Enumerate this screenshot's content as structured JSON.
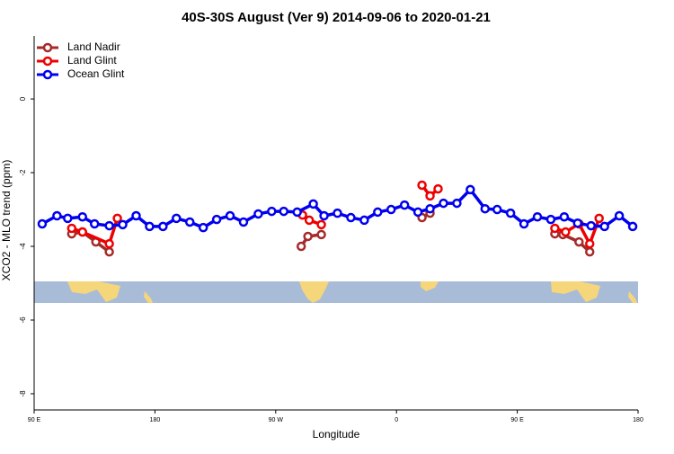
{
  "chart_data": {
    "type": "line",
    "title": "40S-30S August (Ver 9)   2014-09-06 to 2020-01-21",
    "xlabel": "Longitude",
    "ylabel": "XCO2 - MLO trend (ppm)",
    "xlim": [
      90,
      540
    ],
    "ylim": [
      -8.44,
      1.71
    ],
    "xticks": [
      {
        "value": 90,
        "label": "90 E"
      },
      {
        "value": 180,
        "label": "180"
      },
      {
        "value": 270,
        "label": "90 W"
      },
      {
        "value": 360,
        "label": "0"
      },
      {
        "value": 450,
        "label": "90 E"
      },
      {
        "value": 540,
        "label": "180"
      }
    ],
    "yticks": [
      0,
      -2,
      -4,
      -6,
      -8
    ],
    "legend": "top-left",
    "series": [
      {
        "name": "Land Nadir",
        "color": "#a52a2a",
        "x": [
          118,
          126,
          136,
          146,
          null,
          289,
          294,
          304,
          null,
          379,
          385,
          null,
          478,
          484,
          496,
          504
        ],
        "values": [
          -3.66,
          -3.61,
          -3.88,
          -4.15,
          null,
          -4.0,
          -3.73,
          -3.68,
          null,
          -3.22,
          -3.1,
          null,
          -3.66,
          -3.68,
          -3.88,
          -4.15
        ]
      },
      {
        "name": "Land Glint",
        "color": "#ee0000",
        "x": [
          118,
          126,
          146,
          152,
          null,
          290,
          295,
          304,
          null,
          379,
          385,
          391,
          null,
          478,
          486,
          496,
          504,
          511
        ],
        "values": [
          -3.51,
          -3.61,
          -3.93,
          -3.24,
          null,
          -3.15,
          -3.29,
          -3.41,
          null,
          -2.34,
          -2.63,
          -2.44,
          null,
          -3.51,
          -3.61,
          -3.39,
          -3.93,
          -3.24
        ]
      },
      {
        "name": "Ocean Glint",
        "color": "#0000ee",
        "x": [
          96,
          107,
          115,
          126,
          135,
          146,
          156,
          166,
          176,
          186,
          196,
          206,
          216,
          226,
          236,
          246,
          257,
          267,
          276,
          286,
          298,
          306,
          316,
          326,
          336,
          346,
          356,
          366,
          376,
          385,
          395,
          405,
          415,
          426,
          435,
          445,
          455,
          465,
          475,
          485,
          495,
          505,
          515,
          526,
          536
        ],
        "values": [
          -3.39,
          -3.17,
          -3.24,
          -3.2,
          -3.39,
          -3.44,
          -3.41,
          -3.17,
          -3.46,
          -3.46,
          -3.24,
          -3.34,
          -3.49,
          -3.27,
          -3.17,
          -3.34,
          -3.12,
          -3.05,
          -3.05,
          -3.07,
          -2.85,
          -3.17,
          -3.1,
          -3.22,
          -3.29,
          -3.07,
          -3.0,
          -2.88,
          -3.07,
          -2.98,
          -2.83,
          -2.83,
          -2.46,
          -2.98,
          -3.0,
          -3.1,
          -3.39,
          -3.2,
          -3.27,
          -3.2,
          -3.37,
          -3.44,
          -3.46,
          -3.17,
          -3.46
        ]
      }
    ]
  }
}
